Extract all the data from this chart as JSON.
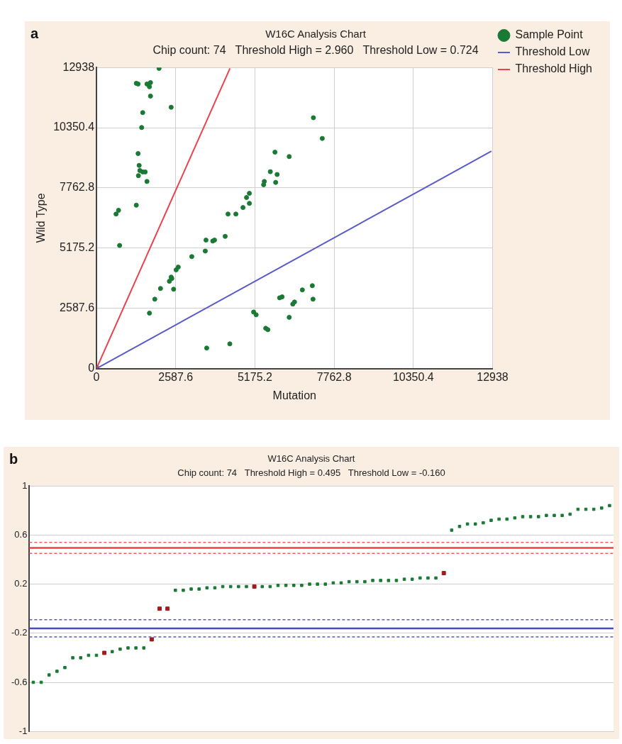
{
  "chart_data": [
    {
      "type": "scatter",
      "title": "W16C Analysis Chart",
      "subtitle": "Chip count: 74   Threshold High = 2.960   Threshold Low = 0.724",
      "xlabel": "Mutation",
      "ylabel": "Wild Type",
      "annotations": [
        "a"
      ],
      "xlim": [
        0,
        12938
      ],
      "ylim": [
        0,
        12938
      ],
      "xticks": [
        0,
        2587.6,
        5175.2,
        7762.8,
        10350.4,
        12938
      ],
      "yticks": [
        0,
        2587.6,
        5175.2,
        7762.8,
        10350.4,
        12938
      ],
      "grid": true,
      "legend": "top right",
      "series": [
        {
          "name": "Sample Point",
          "type": "scatter",
          "marker": "circle",
          "color": "#1a7a35",
          "x": [
            2044,
            1301,
            1359,
            1649,
            1765,
            1730,
            1765,
            2439,
            1510,
            1475,
            1359,
            1394,
            1417,
            1510,
            1591,
            1370,
            1649,
            1301,
            639,
            720,
            755,
            7085,
            7375,
            5830,
            6295,
            5679,
            5900,
            5482,
            5459,
            5853,
            4994,
            4901,
            4994,
            4785,
            4553,
            4297,
            4204,
            3856,
            3798,
            3577,
            3554,
            3113,
            2671,
            2602,
            2439,
            2381,
            2462,
            2091,
            2520,
            1905,
            1730,
            7050,
            6725,
            7073,
            6469,
            6411,
            5981,
            6063,
            6295,
            5133,
            5215,
            5528,
            5598,
            4355,
            3600
          ],
          "values": [
            12900,
            12260,
            12230,
            12230,
            12290,
            12110,
            11710,
            11230,
            11000,
            10360,
            9240,
            8730,
            8510,
            8450,
            8450,
            8290,
            8040,
            7020,
            6640,
            6800,
            5290,
            10780,
            9890,
            9300,
            9110,
            8460,
            8340,
            8040,
            7900,
            8000,
            7530,
            7350,
            7100,
            6920,
            6640,
            6640,
            5680,
            5520,
            5480,
            5520,
            5050,
            4810,
            4360,
            4240,
            3930,
            3750,
            3870,
            3440,
            3410,
            2980,
            2380,
            3560,
            3380,
            2980,
            2860,
            2770,
            3040,
            3080,
            2200,
            2430,
            2310,
            1730,
            1670,
            1060,
            880
          ]
        },
        {
          "name": "Threshold Low",
          "type": "line",
          "marker": "none",
          "color": "#5a5ac8",
          "x": [
            0,
            12900
          ],
          "values": [
            0,
            9340
          ]
        },
        {
          "name": "Threshold High",
          "type": "line",
          "marker": "none",
          "color": "#e8434b",
          "x": [
            0,
            4360
          ],
          "values": [
            0,
            12900
          ]
        },
        {
          "type": "scatter",
          "marker": "square",
          "color": "#a01c1c",
          "x": [
            0
          ],
          "values": [
            0
          ]
        }
      ]
    },
    {
      "type": "scatter",
      "title": "W16C Analysis Chart",
      "subtitle": "Chip count: 74   Threshold High = 0.495   Threshold Low = -0.160",
      "annotations": [
        "b"
      ],
      "categories": [
        null,
        null,
        null,
        null,
        null,
        null,
        null,
        null,
        null,
        null,
        null,
        null,
        null,
        null,
        null,
        null,
        null,
        null,
        null,
        null,
        null,
        null,
        null,
        null,
        null,
        null,
        null,
        null,
        null,
        null,
        null,
        null,
        null,
        null,
        null,
        null,
        null,
        null,
        null,
        null,
        null,
        null,
        null,
        null,
        null,
        null,
        null,
        null,
        null,
        null,
        null,
        null,
        null,
        null,
        null,
        null,
        null,
        null,
        null,
        null,
        null,
        null,
        null,
        null,
        null,
        null,
        null,
        null,
        null,
        null,
        null,
        null,
        null,
        null
      ],
      "ylim": [
        -1,
        1
      ],
      "yticks": [
        -1,
        -0.6,
        -0.2,
        0.2,
        0.6,
        1
      ],
      "grid": "y",
      "tick_labels": "y",
      "ref_lines": [
        {
          "axis": "y",
          "value": 0.54,
          "color": "#f0605a",
          "line_style": "dashed"
        },
        {
          "axis": "y",
          "value": 0.495,
          "color": "#e8434b",
          "line_style": "solid"
        },
        {
          "axis": "y",
          "value": 0.45,
          "color": "#f0605a",
          "line_style": "dashed"
        },
        {
          "axis": "y",
          "value": -0.09,
          "color": "#5a5ac8",
          "line_style": "dashed"
        },
        {
          "axis": "y",
          "value": -0.16,
          "color": "#4b4bc0",
          "line_style": "solid"
        },
        {
          "axis": "y",
          "value": -0.23,
          "color": "#5a5ac8",
          "line_style": "dashed"
        }
      ],
      "series": [
        {
          "type": "scatter",
          "marker": "square",
          "color": "#1a7a35",
          "values": [
            -0.6,
            -0.6,
            -0.54,
            -0.51,
            -0.48,
            -0.4,
            -0.4,
            -0.38,
            -0.38,
            null,
            -0.35,
            -0.33,
            -0.32,
            -0.32,
            -0.32,
            null,
            null,
            null,
            0.15,
            0.15,
            0.16,
            0.16,
            0.17,
            0.17,
            0.18,
            0.18,
            0.18,
            0.18,
            null,
            0.18,
            0.18,
            0.19,
            0.19,
            0.19,
            0.19,
            0.2,
            0.2,
            0.2,
            0.21,
            0.21,
            0.22,
            0.22,
            0.22,
            0.23,
            0.23,
            0.23,
            0.23,
            0.24,
            0.24,
            0.25,
            0.25,
            0.25,
            null,
            0.64,
            0.67,
            0.69,
            0.69,
            0.7,
            0.72,
            0.73,
            0.73,
            0.74,
            0.75,
            0.75,
            0.75,
            0.76,
            0.76,
            0.76,
            0.77,
            0.81,
            0.81,
            0.81,
            0.82,
            0.84
          ]
        },
        {
          "type": "scatter",
          "marker": "square",
          "color": "#a01c1c",
          "values": [
            null,
            null,
            null,
            null,
            null,
            null,
            null,
            null,
            null,
            -0.36,
            null,
            null,
            null,
            null,
            null,
            -0.25,
            0.0,
            0.0,
            null,
            null,
            null,
            null,
            null,
            null,
            null,
            null,
            null,
            null,
            0.18,
            null,
            null,
            null,
            null,
            null,
            null,
            null,
            null,
            null,
            null,
            null,
            null,
            null,
            null,
            null,
            null,
            null,
            null,
            null,
            null,
            null,
            null,
            null,
            0.29,
            null,
            null,
            null,
            null,
            null,
            null,
            null,
            null,
            null,
            null,
            null,
            null,
            null,
            null,
            null,
            null,
            null,
            null,
            null,
            null,
            null
          ]
        }
      ]
    }
  ]
}
